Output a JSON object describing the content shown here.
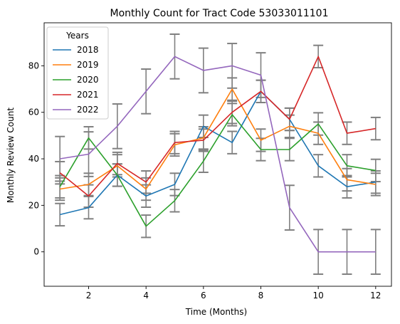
{
  "chart_data": {
    "type": "line",
    "title": "Monthly Count for Tract Code 53033011101",
    "xlabel": "Time (Months)",
    "ylabel": "Monthly Review Count",
    "xlim": [
      0.45,
      12.55
    ],
    "ylim": [
      -14.8,
      98.5
    ],
    "xticks": [
      2,
      4,
      6,
      8,
      10,
      12
    ],
    "yticks": [
      0,
      20,
      40,
      60,
      80
    ],
    "x": [
      1,
      2,
      3,
      4,
      5,
      6,
      7,
      8,
      9,
      10,
      11,
      12
    ],
    "legend": {
      "title": "Years",
      "placement": "top-left"
    },
    "error_bar_color": "#808080",
    "series": [
      {
        "name": "2018",
        "color": "#1f77b4",
        "values": [
          16,
          19,
          33,
          24,
          29,
          54,
          47,
          69,
          57,
          37,
          28,
          30
        ],
        "errors": [
          4.8,
          4.8,
          4.8,
          4.8,
          4.8,
          4.8,
          4.8,
          4.8,
          4.8,
          4.8,
          4.8,
          4.8
        ]
      },
      {
        "name": "2019",
        "color": "#ff7f0e",
        "values": [
          27,
          29,
          37,
          27,
          46,
          49,
          70,
          48,
          54,
          51,
          31,
          29
        ],
        "errors": [
          4.8,
          4.8,
          4.8,
          4.8,
          4.8,
          4.8,
          4.8,
          4.8,
          4.8,
          4.8,
          4.8,
          4.8
        ]
      },
      {
        "name": "2020",
        "color": "#2ca02c",
        "values": [
          28,
          49,
          33,
          11,
          22,
          39,
          59,
          44,
          44,
          55,
          37,
          35
        ],
        "errors": [
          4.8,
          4.8,
          4.8,
          4.8,
          4.8,
          4.8,
          4.8,
          4.8,
          4.8,
          4.8,
          4.8,
          4.8
        ]
      },
      {
        "name": "2021",
        "color": "#d62728",
        "values": [
          34,
          24,
          38,
          30,
          47,
          48,
          60,
          69,
          57,
          84,
          51,
          53
        ],
        "errors": [
          4.8,
          4.8,
          4.8,
          4.8,
          4.8,
          4.8,
          4.8,
          4.8,
          4.8,
          4.8,
          4.8,
          4.8
        ]
      },
      {
        "name": "2022",
        "color": "#9467bd",
        "values": [
          40,
          42,
          54,
          69,
          84,
          78,
          80,
          76,
          19,
          0,
          0,
          0
        ],
        "errors": [
          9.6,
          9.6,
          9.6,
          9.6,
          9.6,
          9.6,
          9.6,
          9.6,
          9.6,
          9.6,
          9.6,
          9.6
        ]
      }
    ]
  }
}
